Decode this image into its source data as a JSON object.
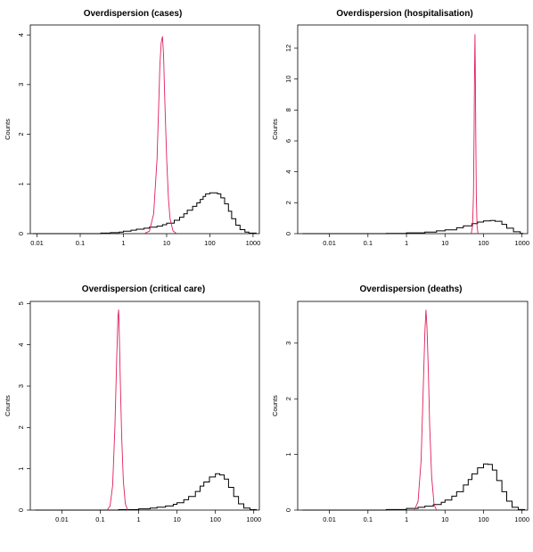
{
  "chart_data": [
    {
      "type": "histogram",
      "title": "Overdispersion (cases)",
      "xlabel": "",
      "ylabel": "Counts",
      "x_scale": "log",
      "xlim": [
        0.007,
        1400
      ],
      "ylim": [
        0,
        4.2
      ],
      "x_ticks": [
        "0.01",
        "0.1",
        "1",
        "10",
        "100",
        "1000"
      ],
      "y_ticks": [
        "0",
        "1",
        "2",
        "3",
        "4"
      ],
      "series": [
        {
          "style": "step",
          "color": "#000000",
          "x": [
            0.008,
            0.3,
            0.5,
            0.8,
            1,
            1.5,
            2,
            3,
            4,
            6,
            8,
            10,
            15,
            20,
            25,
            30,
            40,
            50,
            60,
            70,
            80,
            100,
            120,
            150,
            180,
            220,
            270,
            320,
            400,
            500,
            650,
            800,
            1000
          ],
          "y": [
            0,
            0.01,
            0.02,
            0.03,
            0.05,
            0.07,
            0.09,
            0.11,
            0.13,
            0.15,
            0.18,
            0.21,
            0.27,
            0.33,
            0.4,
            0.47,
            0.55,
            0.62,
            0.69,
            0.75,
            0.8,
            0.82,
            0.82,
            0.8,
            0.72,
            0.6,
            0.45,
            0.3,
            0.17,
            0.08,
            0.03,
            0.01,
            0.01
          ]
        },
        {
          "style": "line",
          "color": "#e0205a",
          "x": [
            3,
            4,
            5,
            6,
            6.5,
            7,
            7.5,
            8,
            8.5,
            9,
            10,
            11,
            12,
            14,
            17
          ],
          "y": [
            0,
            0.05,
            0.4,
            1.5,
            2.5,
            3.4,
            3.85,
            3.97,
            3.6,
            2.8,
            1.5,
            0.7,
            0.3,
            0.06,
            0
          ]
        }
      ]
    },
    {
      "type": "histogram",
      "title": "Overdispersion (hospitalisation)",
      "xlabel": "",
      "ylabel": "Counts",
      "x_scale": "log",
      "xlim": [
        0.0015,
        1400
      ],
      "ylim": [
        0,
        13.5
      ],
      "x_ticks": [
        "0.01",
        "0.1",
        "1",
        "10",
        "100",
        "1000"
      ],
      "y_ticks": [
        "0",
        "2",
        "4",
        "6",
        "8",
        "10",
        "12"
      ],
      "series": [
        {
          "style": "step",
          "color": "#000000",
          "x": [
            0.002,
            0.3,
            1,
            3,
            6,
            10,
            20,
            30,
            50,
            70,
            100,
            150,
            200,
            300,
            400,
            600,
            900
          ],
          "y": [
            0,
            0.02,
            0.05,
            0.1,
            0.18,
            0.25,
            0.38,
            0.5,
            0.65,
            0.75,
            0.82,
            0.85,
            0.8,
            0.6,
            0.35,
            0.12,
            0.02
          ]
        },
        {
          "style": "line",
          "color": "#e0205a",
          "x": [
            48,
            52,
            55,
            57,
            58.5,
            60,
            61.5,
            63,
            65,
            68,
            72
          ],
          "y": [
            0,
            0.5,
            2.5,
            6.5,
            10.5,
            12.9,
            10.5,
            6.5,
            2.5,
            0.5,
            0
          ]
        }
      ]
    },
    {
      "type": "histogram",
      "title": "Overdispersion (critical care)",
      "xlabel": "",
      "ylabel": "Counts",
      "x_scale": "log",
      "xlim": [
        0.0015,
        1400
      ],
      "ylim": [
        0,
        5.05
      ],
      "x_ticks": [
        "0.01",
        "0.1",
        "1",
        "10",
        "100",
        "1000"
      ],
      "y_ticks": [
        "0",
        "1",
        "2",
        "3",
        "4",
        "5"
      ],
      "series": [
        {
          "style": "step",
          "color": "#000000",
          "x": [
            0.002,
            0.3,
            1,
            2,
            3,
            5,
            8,
            10,
            15,
            20,
            30,
            40,
            50,
            70,
            100,
            130,
            170,
            220,
            300,
            400,
            550,
            800,
            1000
          ],
          "y": [
            0,
            0.01,
            0.03,
            0.05,
            0.07,
            0.1,
            0.14,
            0.18,
            0.25,
            0.33,
            0.45,
            0.58,
            0.68,
            0.8,
            0.88,
            0.85,
            0.75,
            0.55,
            0.33,
            0.15,
            0.05,
            0.01,
            0.01
          ]
        },
        {
          "style": "line",
          "color": "#e0205a",
          "x": [
            0.15,
            0.18,
            0.21,
            0.24,
            0.27,
            0.29,
            0.3,
            0.31,
            0.33,
            0.36,
            0.4,
            0.45,
            0.52
          ],
          "y": [
            0,
            0.1,
            0.6,
            2.0,
            3.8,
            4.7,
            4.85,
            4.4,
            3.3,
            1.8,
            0.7,
            0.15,
            0
          ]
        }
      ]
    },
    {
      "type": "histogram",
      "title": "Overdispersion (deaths)",
      "xlabel": "",
      "ylabel": "Counts",
      "x_scale": "log",
      "xlim": [
        0.0015,
        1400
      ],
      "ylim": [
        0,
        3.75
      ],
      "x_ticks": [
        "0.01",
        "0.1",
        "1",
        "10",
        "100",
        "1000"
      ],
      "y_ticks": [
        "0",
        "1",
        "2",
        "3"
      ],
      "series": [
        {
          "style": "step",
          "color": "#000000",
          "x": [
            0.002,
            0.3,
            1,
            2,
            3,
            5,
            8,
            10,
            15,
            20,
            30,
            40,
            50,
            70,
            100,
            130,
            170,
            220,
            300,
            400,
            550,
            800,
            1000
          ],
          "y": [
            0,
            0.01,
            0.03,
            0.05,
            0.07,
            0.1,
            0.14,
            0.18,
            0.25,
            0.33,
            0.45,
            0.55,
            0.65,
            0.76,
            0.83,
            0.82,
            0.72,
            0.53,
            0.33,
            0.16,
            0.05,
            0.01,
            0.01
          ]
        },
        {
          "style": "line",
          "color": "#e0205a",
          "x": [
            1.6,
            2.0,
            2.4,
            2.7,
            3.0,
            3.2,
            3.4,
            3.7,
            4.0,
            4.5,
            5.2,
            6.0
          ],
          "y": [
            0,
            0.15,
            0.9,
            2.1,
            3.2,
            3.6,
            3.3,
            2.5,
            1.5,
            0.6,
            0.1,
            0
          ]
        }
      ]
    }
  ]
}
